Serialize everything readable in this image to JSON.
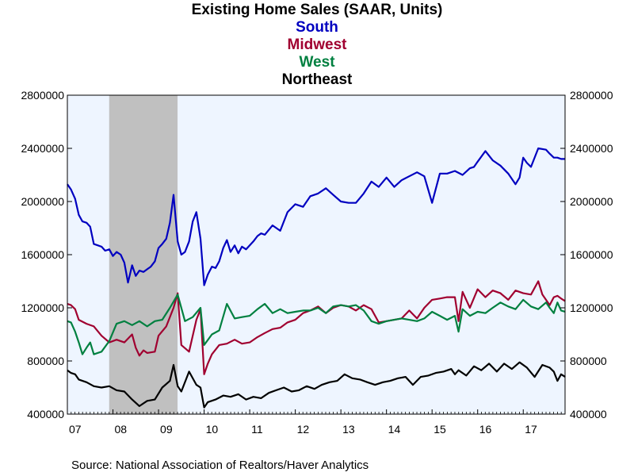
{
  "page": {
    "title": "Existing Home Sales (SAAR, Units)",
    "source": "Source:  National Association of Realtors/Haver Analytics"
  },
  "chart_data": {
    "type": "line",
    "title": "Existing Home Sales (SAAR, Units)",
    "xlabel": "",
    "ylabel": "",
    "ylim": [
      400000,
      2800000
    ],
    "yticks": [
      400000,
      800000,
      1200000,
      1600000,
      2000000,
      2400000,
      2800000
    ],
    "ytick_labels": [
      "400000",
      "800000",
      "1200000",
      "1600000",
      "2000000",
      "2400000",
      "2800000"
    ],
    "xlim": [
      2007.0,
      2017.917
    ],
    "xtick_labels": [
      "07",
      "08",
      "09",
      "10",
      "11",
      "12",
      "13",
      "14",
      "15",
      "16",
      "17"
    ],
    "xtick_positions": [
      2007,
      2008,
      2009,
      2010,
      2011,
      2012,
      2013,
      2014,
      2015,
      2016,
      2017
    ],
    "recession": {
      "start": 2007.917,
      "end": 2009.417,
      "color": "#c0c0c0"
    },
    "grid": false,
    "legend": "title-stack",
    "plot_background": "#eef5ff",
    "series": [
      {
        "name": "South",
        "color": "#0000c0",
        "x": [
          2007.0,
          2007.08,
          2007.17,
          2007.25,
          2007.33,
          2007.42,
          2007.5,
          2007.58,
          2007.67,
          2007.75,
          2007.83,
          2007.92,
          2008.0,
          2008.08,
          2008.17,
          2008.25,
          2008.33,
          2008.42,
          2008.5,
          2008.58,
          2008.67,
          2008.75,
          2008.83,
          2008.92,
          2009.0,
          2009.08,
          2009.17,
          2009.25,
          2009.33,
          2009.42,
          2009.5,
          2009.58,
          2009.67,
          2009.75,
          2009.83,
          2009.92,
          2010.0,
          2010.08,
          2010.17,
          2010.25,
          2010.33,
          2010.42,
          2010.5,
          2010.58,
          2010.67,
          2010.75,
          2010.83,
          2010.92,
          2011.0,
          2011.08,
          2011.17,
          2011.25,
          2011.33,
          2011.5,
          2011.67,
          2011.83,
          2012.0,
          2012.17,
          2012.33,
          2012.5,
          2012.67,
          2012.83,
          2013.0,
          2013.17,
          2013.33,
          2013.5,
          2013.67,
          2013.83,
          2014.0,
          2014.17,
          2014.33,
          2014.5,
          2014.67,
          2014.83,
          2015.0,
          2015.17,
          2015.33,
          2015.5,
          2015.67,
          2015.83,
          2015.92,
          2016.0,
          2016.17,
          2016.33,
          2016.5,
          2016.67,
          2016.83,
          2016.92,
          2017.0,
          2017.08,
          2017.17,
          2017.33,
          2017.5,
          2017.58,
          2017.67,
          2017.75,
          2017.83,
          2017.92
        ],
        "values": [
          2130000,
          2090000,
          2020000,
          1900000,
          1850000,
          1840000,
          1810000,
          1680000,
          1670000,
          1660000,
          1630000,
          1640000,
          1590000,
          1620000,
          1600000,
          1540000,
          1390000,
          1520000,
          1440000,
          1480000,
          1470000,
          1490000,
          1510000,
          1550000,
          1650000,
          1680000,
          1720000,
          1840000,
          2050000,
          1700000,
          1600000,
          1620000,
          1700000,
          1850000,
          1920000,
          1720000,
          1370000,
          1450000,
          1510000,
          1500000,
          1550000,
          1650000,
          1710000,
          1620000,
          1670000,
          1610000,
          1660000,
          1640000,
          1670000,
          1700000,
          1740000,
          1760000,
          1750000,
          1820000,
          1780000,
          1920000,
          1980000,
          1960000,
          2040000,
          2060000,
          2100000,
          2050000,
          2000000,
          1990000,
          1990000,
          2060000,
          2150000,
          2110000,
          2180000,
          2110000,
          2160000,
          2190000,
          2220000,
          2190000,
          1990000,
          2210000,
          2210000,
          2230000,
          2200000,
          2250000,
          2260000,
          2300000,
          2380000,
          2310000,
          2270000,
          2210000,
          2130000,
          2180000,
          2330000,
          2290000,
          2260000,
          2400000,
          2390000,
          2360000,
          2330000,
          2330000,
          2320000,
          2320000
        ]
      },
      {
        "name": "Midwest",
        "color": "#a00030",
        "x": [
          2007.0,
          2007.08,
          2007.17,
          2007.25,
          2007.42,
          2007.58,
          2007.75,
          2007.92,
          2008.08,
          2008.25,
          2008.42,
          2008.5,
          2008.58,
          2008.67,
          2008.75,
          2008.92,
          2009.0,
          2009.17,
          2009.33,
          2009.42,
          2009.5,
          2009.67,
          2009.83,
          2009.92,
          2010.0,
          2010.08,
          2010.17,
          2010.33,
          2010.5,
          2010.67,
          2010.83,
          2011.0,
          2011.17,
          2011.33,
          2011.5,
          2011.67,
          2011.83,
          2012.0,
          2012.17,
          2012.33,
          2012.5,
          2012.67,
          2012.83,
          2013.0,
          2013.17,
          2013.33,
          2013.5,
          2013.67,
          2013.83,
          2014.0,
          2014.17,
          2014.33,
          2014.5,
          2014.67,
          2014.83,
          2015.0,
          2015.17,
          2015.33,
          2015.5,
          2015.58,
          2015.67,
          2015.83,
          2016.0,
          2016.17,
          2016.33,
          2016.5,
          2016.67,
          2016.83,
          2017.0,
          2017.17,
          2017.33,
          2017.42,
          2017.58,
          2017.67,
          2017.75,
          2017.83,
          2017.92
        ],
        "values": [
          1230000,
          1220000,
          1190000,
          1110000,
          1080000,
          1060000,
          990000,
          940000,
          960000,
          940000,
          1000000,
          900000,
          840000,
          880000,
          860000,
          870000,
          990000,
          1060000,
          1200000,
          1310000,
          920000,
          870000,
          1110000,
          1190000,
          700000,
          780000,
          850000,
          920000,
          930000,
          960000,
          930000,
          940000,
          980000,
          1010000,
          1040000,
          1050000,
          1090000,
          1110000,
          1160000,
          1180000,
          1210000,
          1160000,
          1200000,
          1220000,
          1210000,
          1180000,
          1220000,
          1190000,
          1090000,
          1100000,
          1110000,
          1120000,
          1180000,
          1120000,
          1200000,
          1260000,
          1270000,
          1280000,
          1280000,
          1100000,
          1320000,
          1200000,
          1340000,
          1280000,
          1330000,
          1310000,
          1260000,
          1330000,
          1310000,
          1300000,
          1400000,
          1300000,
          1220000,
          1280000,
          1290000,
          1270000,
          1250000
        ]
      },
      {
        "name": "West",
        "color": "#008040",
        "x": [
          2007.0,
          2007.08,
          2007.17,
          2007.25,
          2007.33,
          2007.42,
          2007.5,
          2007.58,
          2007.75,
          2007.92,
          2008.08,
          2008.25,
          2008.42,
          2008.58,
          2008.75,
          2008.92,
          2009.08,
          2009.25,
          2009.42,
          2009.58,
          2009.75,
          2009.92,
          2010.0,
          2010.17,
          2010.33,
          2010.5,
          2010.67,
          2010.83,
          2011.0,
          2011.17,
          2011.33,
          2011.5,
          2011.67,
          2011.83,
          2012.0,
          2012.17,
          2012.33,
          2012.5,
          2012.67,
          2012.83,
          2013.0,
          2013.17,
          2013.33,
          2013.5,
          2013.67,
          2013.83,
          2014.0,
          2014.17,
          2014.33,
          2014.5,
          2014.67,
          2014.83,
          2015.0,
          2015.17,
          2015.33,
          2015.5,
          2015.58,
          2015.67,
          2015.83,
          2016.0,
          2016.17,
          2016.33,
          2016.5,
          2016.67,
          2016.83,
          2017.0,
          2017.17,
          2017.33,
          2017.5,
          2017.58,
          2017.67,
          2017.75,
          2017.83,
          2017.92
        ],
        "values": [
          1100000,
          1090000,
          1020000,
          940000,
          850000,
          900000,
          940000,
          850000,
          870000,
          950000,
          1080000,
          1100000,
          1070000,
          1100000,
          1060000,
          1100000,
          1110000,
          1200000,
          1300000,
          1100000,
          1130000,
          1200000,
          920000,
          1000000,
          1030000,
          1230000,
          1120000,
          1130000,
          1140000,
          1190000,
          1230000,
          1160000,
          1190000,
          1160000,
          1170000,
          1180000,
          1180000,
          1200000,
          1160000,
          1210000,
          1220000,
          1210000,
          1220000,
          1180000,
          1100000,
          1080000,
          1100000,
          1110000,
          1120000,
          1110000,
          1100000,
          1120000,
          1170000,
          1140000,
          1110000,
          1140000,
          1020000,
          1190000,
          1140000,
          1170000,
          1160000,
          1200000,
          1240000,
          1210000,
          1190000,
          1260000,
          1210000,
          1190000,
          1240000,
          1200000,
          1160000,
          1240000,
          1180000,
          1170000
        ]
      },
      {
        "name": "Northeast",
        "color": "#000000",
        "x": [
          2007.0,
          2007.08,
          2007.17,
          2007.25,
          2007.42,
          2007.58,
          2007.75,
          2007.92,
          2008.08,
          2008.25,
          2008.42,
          2008.58,
          2008.75,
          2008.92,
          2009.08,
          2009.25,
          2009.33,
          2009.42,
          2009.5,
          2009.67,
          2009.83,
          2009.92,
          2010.0,
          2010.08,
          2010.25,
          2010.42,
          2010.58,
          2010.75,
          2010.92,
          2011.08,
          2011.25,
          2011.42,
          2011.58,
          2011.75,
          2011.92,
          2012.08,
          2012.25,
          2012.42,
          2012.58,
          2012.75,
          2012.92,
          2013.08,
          2013.25,
          2013.42,
          2013.58,
          2013.75,
          2013.92,
          2014.08,
          2014.25,
          2014.42,
          2014.58,
          2014.75,
          2014.92,
          2015.08,
          2015.25,
          2015.42,
          2015.5,
          2015.58,
          2015.75,
          2015.92,
          2016.08,
          2016.25,
          2016.42,
          2016.58,
          2016.75,
          2016.92,
          2017.08,
          2017.25,
          2017.42,
          2017.58,
          2017.67,
          2017.75,
          2017.83,
          2017.92
        ],
        "values": [
          730000,
          710000,
          700000,
          660000,
          640000,
          610000,
          600000,
          610000,
          580000,
          570000,
          510000,
          460000,
          500000,
          510000,
          600000,
          650000,
          770000,
          610000,
          570000,
          720000,
          620000,
          600000,
          450000,
          490000,
          510000,
          540000,
          530000,
          550000,
          510000,
          530000,
          520000,
          560000,
          580000,
          600000,
          570000,
          580000,
          610000,
          590000,
          620000,
          640000,
          650000,
          700000,
          670000,
          660000,
          640000,
          620000,
          640000,
          650000,
          670000,
          680000,
          620000,
          680000,
          690000,
          710000,
          720000,
          740000,
          700000,
          730000,
          690000,
          760000,
          730000,
          780000,
          720000,
          780000,
          740000,
          790000,
          750000,
          680000,
          770000,
          750000,
          720000,
          650000,
          700000,
          680000
        ]
      }
    ]
  }
}
